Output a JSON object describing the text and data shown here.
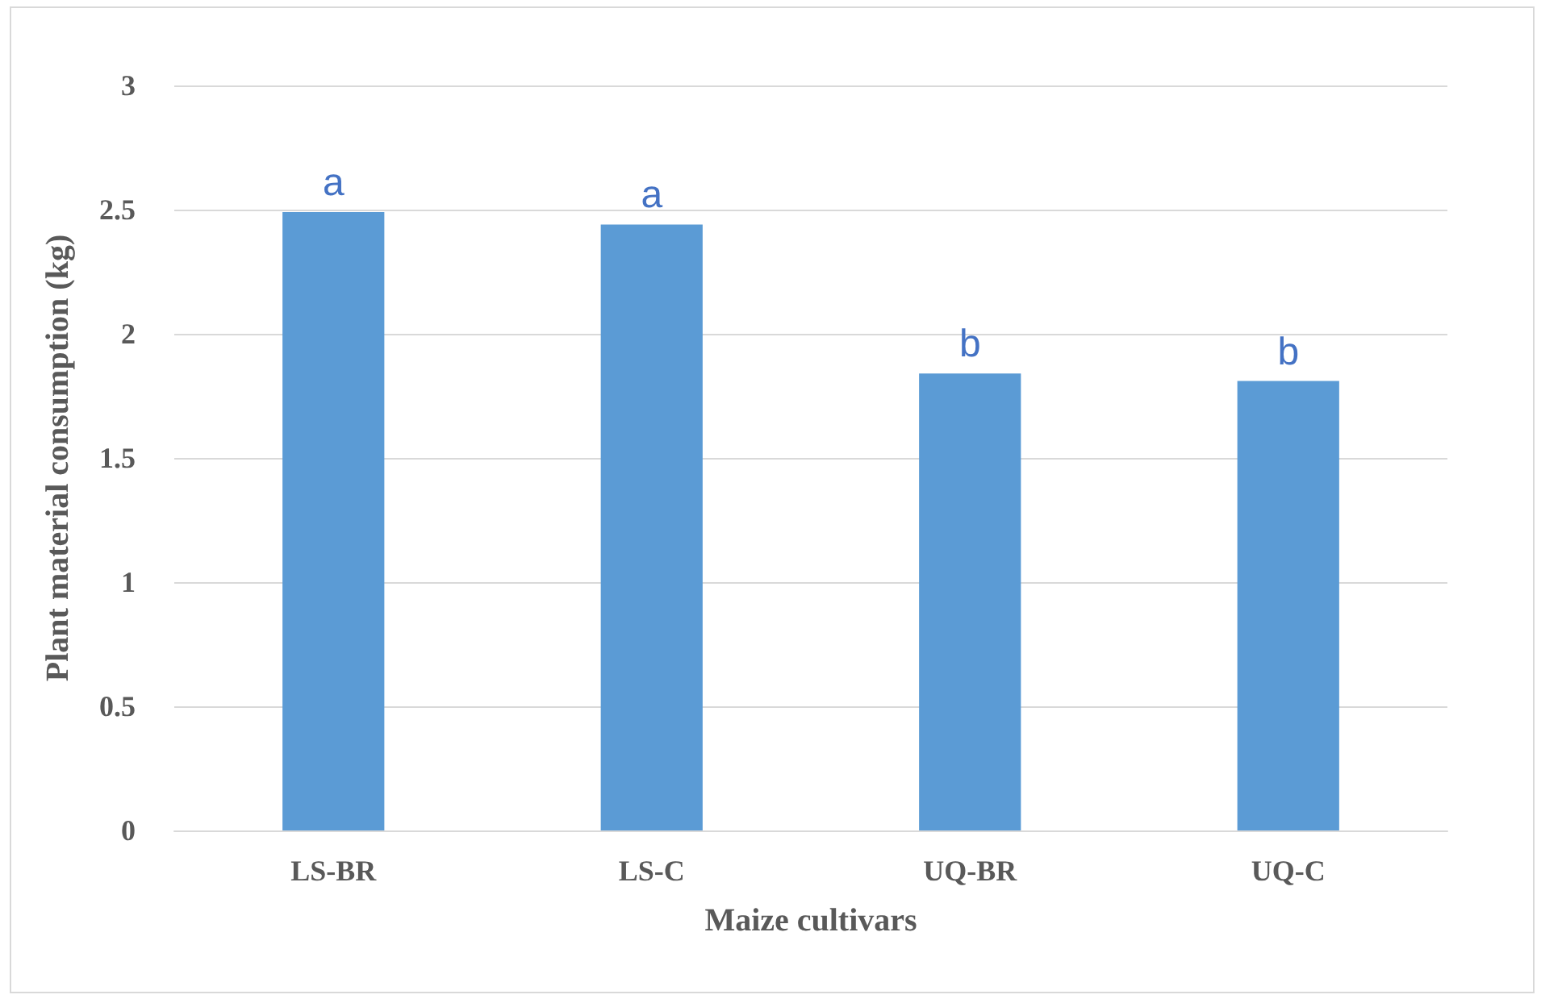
{
  "chart_data": {
    "type": "bar",
    "xlabel": "Maize cultivars",
    "ylabel": "Plant material consumption (kg)",
    "categories": [
      "LS-BR",
      "LS-C",
      "UQ-BR",
      "UQ-C"
    ],
    "values": [
      2.49,
      2.44,
      1.84,
      1.81
    ],
    "color": "#5b9bd5",
    "ylim": [
      0,
      3
    ],
    "yticks": [
      0,
      0.5,
      1,
      1.5,
      2,
      2.5,
      3
    ],
    "grid": "y",
    "annotations": [
      {
        "text": "a",
        "x": "LS-BR",
        "y": 2.49
      },
      {
        "text": "a",
        "x": "LS-C",
        "y": 2.44
      },
      {
        "text": "b",
        "x": "UQ-BR",
        "y": 1.84
      },
      {
        "text": "b",
        "x": "UQ-C",
        "y": 1.81
      }
    ]
  }
}
